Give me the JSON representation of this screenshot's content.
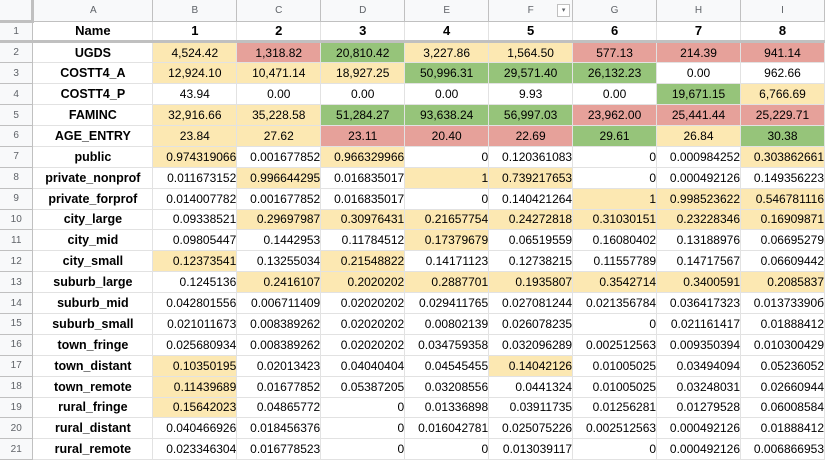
{
  "colors": {
    "yellow": "#fce8b2",
    "red": "#e6a19a",
    "green": "#96c47a",
    "white": "#ffffff"
  },
  "col_headers": [
    "A",
    "B",
    "C",
    "D",
    "E",
    "F",
    "G",
    "H",
    "I"
  ],
  "header_row": {
    "row_num": "1",
    "cells": [
      "Name",
      "1",
      "2",
      "3",
      "4",
      "5",
      "6",
      "7",
      "8"
    ]
  },
  "rows": [
    {
      "row_num": "2",
      "name": "UGDS",
      "align": "center",
      "values": [
        "4,524.42",
        "1,318.82",
        "20,810.42",
        "3,227.86",
        "1,564.50",
        "577.13",
        "214.39",
        "941.14"
      ],
      "fills": [
        "yellow",
        "red",
        "green",
        "yellow",
        "yellow",
        "red",
        "red",
        "red"
      ]
    },
    {
      "row_num": "3",
      "name": "COSTT4_A",
      "align": "center",
      "values": [
        "12,924.10",
        "10,471.14",
        "18,927.25",
        "50,996.31",
        "29,571.40",
        "26,132.23",
        "0.00",
        "962.66"
      ],
      "fills": [
        "yellow",
        "yellow",
        "yellow",
        "green",
        "green",
        "green",
        "white",
        "white"
      ]
    },
    {
      "row_num": "4",
      "name": "COSTT4_P",
      "align": "center",
      "values": [
        "43.94",
        "0.00",
        "0.00",
        "0.00",
        "9.93",
        "0.00",
        "19,671.15",
        "6,766.69"
      ],
      "fills": [
        "white",
        "white",
        "white",
        "white",
        "white",
        "white",
        "green",
        "yellow"
      ]
    },
    {
      "row_num": "5",
      "name": "FAMINC",
      "align": "center",
      "values": [
        "32,916.66",
        "35,228.58",
        "51,284.27",
        "93,638.24",
        "56,997.03",
        "23,962.00",
        "25,441.44",
        "25,229.71"
      ],
      "fills": [
        "yellow",
        "yellow",
        "green",
        "green",
        "green",
        "red",
        "red",
        "red"
      ]
    },
    {
      "row_num": "6",
      "name": "AGE_ENTRY",
      "align": "center",
      "values": [
        "23.84",
        "27.62",
        "23.11",
        "20.40",
        "22.69",
        "29.61",
        "26.84",
        "30.38"
      ],
      "fills": [
        "yellow",
        "yellow",
        "red",
        "red",
        "red",
        "green",
        "yellow",
        "green"
      ]
    },
    {
      "row_num": "7",
      "name": "public",
      "align": "right",
      "values": [
        "0.974319066",
        "0.001677852",
        "0.966329966",
        "0",
        "0.120361083",
        "0",
        "0.000984252",
        "0.303862661"
      ],
      "fills": [
        "yellow",
        "white",
        "yellow",
        "white",
        "white",
        "white",
        "white",
        "yellow"
      ]
    },
    {
      "row_num": "8",
      "name": "private_nonprof",
      "align": "right",
      "values": [
        "0.011673152",
        "0.996644295",
        "0.016835017",
        "1",
        "0.739217653",
        "0",
        "0.000492126",
        "0.149356223"
      ],
      "fills": [
        "white",
        "yellow",
        "white",
        "yellow",
        "yellow",
        "white",
        "white",
        "white"
      ]
    },
    {
      "row_num": "9",
      "name": "private_forprof",
      "align": "right",
      "values": [
        "0.014007782",
        "0.001677852",
        "0.016835017",
        "0",
        "0.140421264",
        "1",
        "0.998523622",
        "0.546781116"
      ],
      "fills": [
        "white",
        "white",
        "white",
        "white",
        "white",
        "yellow",
        "yellow",
        "yellow"
      ]
    },
    {
      "row_num": "10",
      "name": "city_large",
      "align": "right",
      "values": [
        "0.09338521",
        "0.29697987",
        "0.30976431",
        "0.21657754",
        "0.24272818",
        "0.31030151",
        "0.23228346",
        "0.16909871"
      ],
      "fills": [
        "white",
        "yellow",
        "yellow",
        "yellow",
        "yellow",
        "yellow",
        "yellow",
        "yellow"
      ]
    },
    {
      "row_num": "11",
      "name": "city_mid",
      "align": "right",
      "values": [
        "0.09805447",
        "0.1442953",
        "0.11784512",
        "0.17379679",
        "0.06519559",
        "0.16080402",
        "0.13188976",
        "0.06695279"
      ],
      "fills": [
        "white",
        "white",
        "white",
        "yellow",
        "white",
        "white",
        "white",
        "white"
      ]
    },
    {
      "row_num": "12",
      "name": "city_small",
      "align": "right",
      "values": [
        "0.12373541",
        "0.13255034",
        "0.21548822",
        "0.14171123",
        "0.12738215",
        "0.11557789",
        "0.14717567",
        "0.06609442"
      ],
      "fills": [
        "yellow",
        "white",
        "yellow",
        "white",
        "white",
        "white",
        "white",
        "white"
      ]
    },
    {
      "row_num": "13",
      "name": "suburb_large",
      "align": "right",
      "values": [
        "0.1245136",
        "0.2416107",
        "0.2020202",
        "0.2887701",
        "0.1935807",
        "0.3542714",
        "0.3400591",
        "0.2085837"
      ],
      "fills": [
        "white",
        "yellow",
        "yellow",
        "yellow",
        "yellow",
        "yellow",
        "yellow",
        "yellow"
      ]
    },
    {
      "row_num": "14",
      "name": "suburb_mid",
      "align": "right",
      "values": [
        "0.042801556",
        "0.006711409",
        "0.02020202",
        "0.029411765",
        "0.027081244",
        "0.021356784",
        "0.036417323",
        "0.01373390б"
      ],
      "fills": [
        "white",
        "white",
        "white",
        "white",
        "white",
        "white",
        "white",
        "white"
      ]
    },
    {
      "row_num": "15",
      "name": "suburb_small",
      "align": "right",
      "values": [
        "0.021011673",
        "0.008389262",
        "0.02020202",
        "0.00802139",
        "0.026078235",
        "0",
        "0.021161417",
        "0.01888412"
      ],
      "fills": [
        "white",
        "white",
        "white",
        "white",
        "white",
        "white",
        "white",
        "white"
      ]
    },
    {
      "row_num": "16",
      "name": "town_fringe",
      "align": "right",
      "values": [
        "0.025680934",
        "0.008389262",
        "0.02020202",
        "0.034759358",
        "0.032096289",
        "0.002512563",
        "0.009350394",
        "0.010300429"
      ],
      "fills": [
        "white",
        "white",
        "white",
        "white",
        "white",
        "white",
        "white",
        "white"
      ]
    },
    {
      "row_num": "17",
      "name": "town_distant",
      "align": "right",
      "values": [
        "0.10350195",
        "0.02013423",
        "0.04040404",
        "0.04545455",
        "0.14042126",
        "0.01005025",
        "0.03494094",
        "0.05236052"
      ],
      "fills": [
        "yellow",
        "white",
        "white",
        "white",
        "yellow",
        "white",
        "white",
        "white"
      ]
    },
    {
      "row_num": "18",
      "name": "town_remote",
      "align": "right",
      "values": [
        "0.11439689",
        "0.01677852",
        "0.05387205",
        "0.03208556",
        "0.0441324",
        "0.01005025",
        "0.03248031",
        "0.02660944"
      ],
      "fills": [
        "yellow",
        "white",
        "white",
        "white",
        "white",
        "white",
        "white",
        "white"
      ]
    },
    {
      "row_num": "19",
      "name": "rural_fringe",
      "align": "right",
      "values": [
        "0.15642023",
        "0.04865772",
        "0",
        "0.01336898",
        "0.03911735",
        "0.01256281",
        "0.01279528",
        "0.06008584"
      ],
      "fills": [
        "yellow",
        "white",
        "white",
        "white",
        "white",
        "white",
        "white",
        "white"
      ]
    },
    {
      "row_num": "20",
      "name": "rural_distant",
      "align": "right",
      "values": [
        "0.040466926",
        "0.018456376",
        "0",
        "0.016042781",
        "0.025075226",
        "0.002512563",
        "0.000492126",
        "0.01888412"
      ],
      "fills": [
        "white",
        "white",
        "white",
        "white",
        "white",
        "white",
        "white",
        "white"
      ]
    },
    {
      "row_num": "21",
      "name": "rural_remote",
      "align": "right",
      "values": [
        "0.023346304",
        "0.016778523",
        "0",
        "0",
        "0.013039117",
        "0",
        "0.000492126",
        "0.006866953"
      ],
      "fills": [
        "white",
        "white",
        "white",
        "white",
        "white",
        "white",
        "white",
        "white"
      ]
    }
  ]
}
